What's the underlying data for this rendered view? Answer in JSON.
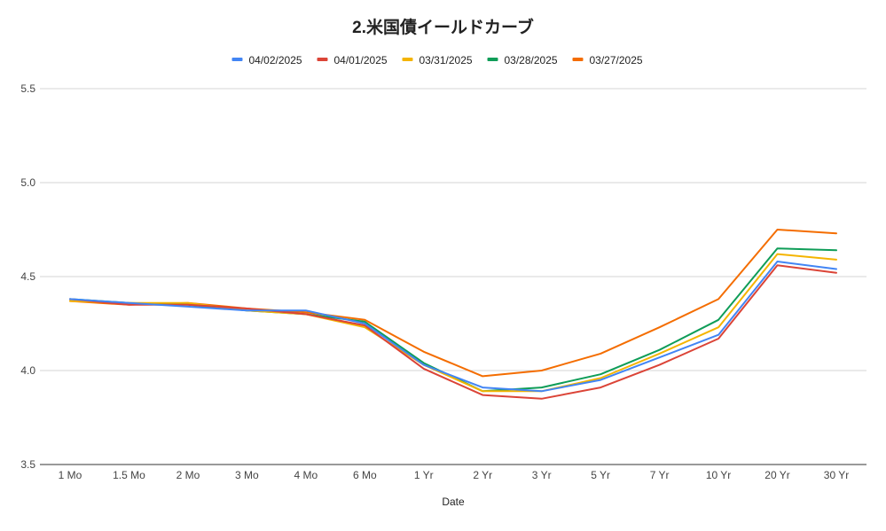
{
  "chart_data": {
    "type": "line",
    "title": "2.米国債イールドカーブ",
    "xlabel": "Date",
    "ylabel": "",
    "categories": [
      "1 Mo",
      "1.5 Mo",
      "2 Mo",
      "3 Mo",
      "4 Mo",
      "6 Mo",
      "1 Yr",
      "2 Yr",
      "3 Yr",
      "5 Yr",
      "7 Yr",
      "10 Yr",
      "20 Yr",
      "30 Yr"
    ],
    "y_ticks": [
      "3.5",
      "4.0",
      "4.5",
      "5.0",
      "5.5"
    ],
    "ylim": [
      3.5,
      5.5
    ],
    "grid": true,
    "legend_position": "top",
    "series": [
      {
        "name": "04/02/2025",
        "color": "#4285F4",
        "values": [
          4.38,
          4.36,
          4.34,
          4.32,
          4.32,
          4.25,
          4.03,
          3.91,
          3.89,
          3.95,
          4.07,
          4.19,
          4.58,
          4.54
        ]
      },
      {
        "name": "04/01/2025",
        "color": "#DB4437",
        "values": [
          4.38,
          4.35,
          4.35,
          4.33,
          4.3,
          4.24,
          4.01,
          3.87,
          3.85,
          3.91,
          4.03,
          4.17,
          4.56,
          4.52
        ]
      },
      {
        "name": "03/31/2025",
        "color": "#F4B400",
        "values": [
          4.37,
          4.36,
          4.36,
          4.32,
          4.3,
          4.23,
          4.03,
          3.89,
          3.89,
          3.96,
          4.09,
          4.23,
          4.62,
          4.59
        ]
      },
      {
        "name": "03/28/2025",
        "color": "#0F9D58",
        "values": [
          4.38,
          4.36,
          4.35,
          4.32,
          4.3,
          4.26,
          4.04,
          3.89,
          3.91,
          3.98,
          4.11,
          4.27,
          4.65,
          4.64
        ]
      },
      {
        "name": "03/27/2025",
        "color": "#F46D00",
        "values": [
          4.37,
          4.35,
          4.36,
          4.33,
          4.31,
          4.27,
          4.1,
          3.97,
          4.0,
          4.09,
          4.23,
          4.38,
          4.75,
          4.73
        ]
      }
    ]
  }
}
